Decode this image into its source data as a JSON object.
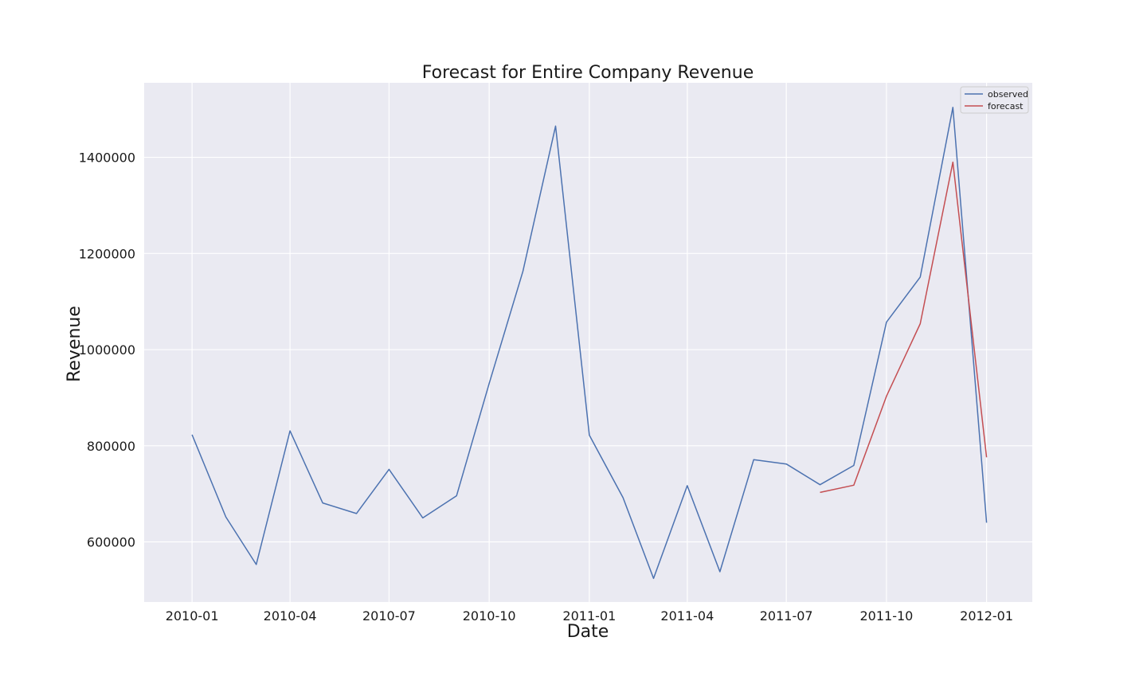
{
  "chart_data": {
    "type": "line",
    "title": "Forecast for Entire Company Revenue",
    "xlabel": "Date",
    "ylabel": "Revenue",
    "x_tick_labels": [
      "2010-01",
      "2010-04",
      "2010-07",
      "2010-10",
      "2011-01",
      "2011-04",
      "2011-07",
      "2011-10",
      "2012-01"
    ],
    "y_tick_labels": [
      "600000",
      "800000",
      "1000000",
      "1200000",
      "1400000"
    ],
    "y_ticks": [
      600000,
      800000,
      1000000,
      1200000,
      1400000
    ],
    "xlim": [
      "2009-11-18",
      "2012-02-12"
    ],
    "ylim": [
      475000,
      1555000
    ],
    "grid": true,
    "legend_position": "top-right",
    "series": [
      {
        "name": "observed",
        "color": "#4c72b0",
        "x": [
          "2010-01-01",
          "2010-02-01",
          "2010-03-01",
          "2010-04-01",
          "2010-05-01",
          "2010-06-01",
          "2010-07-01",
          "2010-08-01",
          "2010-09-01",
          "2010-10-01",
          "2010-11-01",
          "2010-12-01",
          "2011-01-01",
          "2011-02-01",
          "2011-03-01",
          "2011-04-01",
          "2011-05-01",
          "2011-06-01",
          "2011-07-01",
          "2011-08-01",
          "2011-09-01",
          "2011-10-01",
          "2011-11-01",
          "2011-12-01",
          "2012-01-01"
        ],
        "values": [
          823000,
          652000,
          553000,
          831000,
          681000,
          659000,
          751000,
          650000,
          696000,
          930000,
          1163000,
          1465000,
          822000,
          692000,
          524000,
          717000,
          538000,
          771000,
          762000,
          719000,
          759000,
          1057000,
          1151000,
          1504000,
          640000
        ]
      },
      {
        "name": "forecast",
        "color": "#c44e52",
        "x": [
          "2011-08-01",
          "2011-09-01",
          "2011-10-01",
          "2011-11-01",
          "2011-12-01",
          "2012-01-01"
        ],
        "values": [
          703000,
          718000,
          903000,
          1054000,
          1390000,
          776000
        ]
      }
    ]
  }
}
